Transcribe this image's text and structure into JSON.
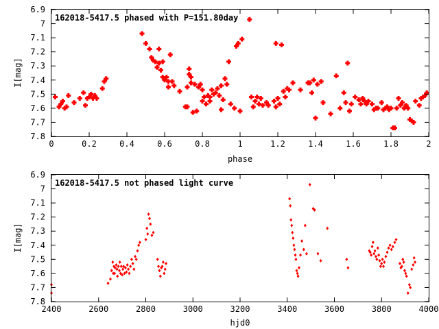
{
  "chart_data": [
    {
      "type": "scatter",
      "title": "162018-5417.5 phased with P=151.80day",
      "xlabel": "phase",
      "ylabel": "I[mag]",
      "xlim": [
        0,
        2
      ],
      "ylim": [
        7.8,
        6.9
      ],
      "y_inverted": true,
      "xticks": [
        "0",
        "0.2",
        "0.4",
        "0.6",
        "0.8",
        "1",
        "1.2",
        "1.4",
        "1.6",
        "1.8",
        "2"
      ],
      "yticks": [
        "6.9",
        "7",
        "7.1",
        "7.2",
        "7.3",
        "7.4",
        "7.5",
        "7.6",
        "7.7",
        "7.8"
      ],
      "marker_color": "#ff0000",
      "grid": false,
      "points": [
        [
          0.02,
          7.52
        ],
        [
          0.04,
          7.59
        ],
        [
          0.05,
          7.57
        ],
        [
          0.06,
          7.55
        ],
        [
          0.07,
          7.6
        ],
        [
          0.08,
          7.59
        ],
        [
          0.09,
          7.51
        ],
        [
          0.12,
          7.56
        ],
        [
          0.15,
          7.53
        ],
        [
          0.17,
          7.49
        ],
        [
          0.18,
          7.58
        ],
        [
          0.19,
          7.53
        ],
        [
          0.2,
          7.52
        ],
        [
          0.21,
          7.5
        ],
        [
          0.22,
          7.53
        ],
        [
          0.23,
          7.51
        ],
        [
          0.24,
          7.53
        ],
        [
          0.27,
          7.46
        ],
        [
          0.28,
          7.41
        ],
        [
          0.29,
          7.39
        ],
        [
          0.48,
          7.07
        ],
        [
          0.5,
          7.14
        ],
        [
          0.52,
          7.18
        ],
        [
          0.53,
          7.24
        ],
        [
          0.54,
          7.26
        ],
        [
          0.55,
          7.27
        ],
        [
          0.56,
          7.31
        ],
        [
          0.57,
          7.28
        ],
        [
          0.57,
          7.18
        ],
        [
          0.58,
          7.33
        ],
        [
          0.59,
          7.27
        ],
        [
          0.59,
          7.38
        ],
        [
          0.6,
          7.4
        ],
        [
          0.61,
          7.38
        ],
        [
          0.62,
          7.41
        ],
        [
          0.62,
          7.45
        ],
        [
          0.63,
          7.22
        ],
        [
          0.64,
          7.41
        ],
        [
          0.65,
          7.44
        ],
        [
          0.68,
          7.48
        ],
        [
          0.71,
          7.59
        ],
        [
          0.72,
          7.45
        ],
        [
          0.72,
          7.59
        ],
        [
          0.73,
          7.32
        ],
        [
          0.73,
          7.36
        ],
        [
          0.74,
          7.38
        ],
        [
          0.74,
          7.42
        ],
        [
          0.75,
          7.63
        ],
        [
          0.76,
          7.43
        ],
        [
          0.77,
          7.62
        ],
        [
          0.78,
          7.45
        ],
        [
          0.79,
          7.43
        ],
        [
          0.8,
          7.55
        ],
        [
          0.8,
          7.47
        ],
        [
          0.81,
          7.52
        ],
        [
          0.82,
          7.57
        ],
        [
          0.83,
          7.51
        ],
        [
          0.84,
          7.52
        ],
        [
          0.84,
          7.55
        ],
        [
          0.85,
          7.47
        ],
        [
          0.86,
          7.5
        ],
        [
          0.87,
          7.49
        ],
        [
          0.88,
          7.46
        ],
        [
          0.89,
          7.51
        ],
        [
          0.9,
          7.44
        ],
        [
          0.9,
          7.61
        ],
        [
          0.91,
          7.54
        ],
        [
          0.92,
          7.39
        ],
        [
          0.93,
          7.43
        ],
        [
          0.94,
          7.27
        ],
        [
          0.95,
          7.57
        ],
        [
          0.97,
          7.6
        ],
        [
          0.98,
          7.16
        ],
        [
          0.99,
          7.14
        ],
        [
          1,
          7.62
        ],
        [
          1.01,
          7.11
        ],
        [
          1.05,
          6.97
        ],
        [
          1.06,
          7.52
        ],
        [
          1.07,
          7.59
        ],
        [
          1.08,
          7.55
        ],
        [
          1.09,
          7.52
        ],
        [
          1.1,
          7.57
        ],
        [
          1.11,
          7.53
        ],
        [
          1.12,
          7.58
        ],
        [
          1.14,
          7.56
        ],
        [
          1.15,
          7.58
        ],
        [
          1.18,
          7.55
        ],
        [
          1.19,
          7.59
        ],
        [
          1.19,
          7.14
        ],
        [
          1.2,
          7.53
        ],
        [
          1.21,
          7.57
        ],
        [
          1.22,
          7.15
        ],
        [
          1.23,
          7.48
        ],
        [
          1.24,
          7.52
        ],
        [
          1.25,
          7.46
        ],
        [
          1.26,
          7.47
        ],
        [
          1.28,
          7.42
        ],
        [
          1.32,
          7.47
        ],
        [
          1.36,
          7.42
        ],
        [
          1.37,
          7.42
        ],
        [
          1.38,
          7.49
        ],
        [
          1.39,
          7.4
        ],
        [
          1.4,
          7.67
        ],
        [
          1.41,
          7.43
        ],
        [
          1.43,
          7.41
        ],
        [
          1.44,
          7.56
        ],
        [
          1.48,
          7.64
        ],
        [
          1.51,
          7.37
        ],
        [
          1.53,
          7.6
        ],
        [
          1.55,
          7.49
        ],
        [
          1.56,
          7.56
        ],
        [
          1.57,
          7.28
        ],
        [
          1.58,
          7.62
        ],
        [
          1.59,
          7.57
        ],
        [
          1.61,
          7.52
        ],
        [
          1.63,
          7.54
        ],
        [
          1.64,
          7.57
        ],
        [
          1.65,
          7.53
        ],
        [
          1.66,
          7.55
        ],
        [
          1.67,
          7.57
        ],
        [
          1.68,
          7.55
        ],
        [
          1.7,
          7.57
        ],
        [
          1.71,
          7.61
        ],
        [
          1.72,
          7.6
        ],
        [
          1.73,
          7.6
        ],
        [
          1.75,
          7.56
        ],
        [
          1.76,
          7.61
        ],
        [
          1.77,
          7.6
        ],
        [
          1.78,
          7.59
        ],
        [
          1.79,
          7.61
        ],
        [
          1.8,
          7.6
        ],
        [
          1.81,
          7.74
        ],
        [
          1.82,
          7.74
        ],
        [
          1.83,
          7.6
        ],
        [
          1.84,
          7.53
        ],
        [
          1.85,
          7.58
        ],
        [
          1.86,
          7.56
        ],
        [
          1.87,
          7.6
        ],
        [
          1.88,
          7.58
        ],
        [
          1.89,
          7.6
        ],
        [
          1.9,
          7.68
        ],
        [
          1.91,
          7.69
        ],
        [
          1.92,
          7.7
        ],
        [
          1.93,
          7.55
        ],
        [
          1.95,
          7.58
        ],
        [
          1.96,
          7.53
        ],
        [
          1.97,
          7.52
        ],
        [
          1.98,
          7.51
        ],
        [
          1.99,
          7.49
        ]
      ]
    },
    {
      "type": "scatter",
      "title": "162018-5417.5 not phased light curve",
      "xlabel": "hjd0",
      "ylabel": "I[mag]",
      "xlim": [
        2400,
        4000
      ],
      "ylim": [
        7.8,
        6.9
      ],
      "y_inverted": true,
      "xticks": [
        "2400",
        "2600",
        "2800",
        "3000",
        "3200",
        "3400",
        "3600",
        "3800",
        "4000"
      ],
      "yticks": [
        "6.9",
        "7",
        "7.1",
        "7.2",
        "7.3",
        "7.4",
        "7.5",
        "7.6",
        "7.7",
        "7.8"
      ],
      "marker_color": "#ff0000",
      "grid": false,
      "points": [
        [
          2400,
          7.68
        ],
        [
          2400,
          7.74
        ],
        [
          2640,
          7.67
        ],
        [
          2650,
          7.64
        ],
        [
          2655,
          7.58
        ],
        [
          2660,
          7.52
        ],
        [
          2662,
          7.6
        ],
        [
          2665,
          7.55
        ],
        [
          2668,
          7.6
        ],
        [
          2670,
          7.56
        ],
        [
          2675,
          7.54
        ],
        [
          2678,
          7.57
        ],
        [
          2680,
          7.62
        ],
        [
          2684,
          7.55
        ],
        [
          2688,
          7.58
        ],
        [
          2690,
          7.52
        ],
        [
          2693,
          7.6
        ],
        [
          2696,
          7.55
        ],
        [
          2700,
          7.61
        ],
        [
          2703,
          7.57
        ],
        [
          2706,
          7.55
        ],
        [
          2710,
          7.6
        ],
        [
          2714,
          7.56
        ],
        [
          2718,
          7.59
        ],
        [
          2722,
          7.54
        ],
        [
          2726,
          7.57
        ],
        [
          2730,
          7.6
        ],
        [
          2735,
          7.55
        ],
        [
          2740,
          7.5
        ],
        [
          2745,
          7.53
        ],
        [
          2750,
          7.57
        ],
        [
          2755,
          7.48
        ],
        [
          2760,
          7.5
        ],
        [
          2765,
          7.44
        ],
        [
          2770,
          7.4
        ],
        [
          2775,
          7.38
        ],
        [
          2800,
          7.36
        ],
        [
          2805,
          7.28
        ],
        [
          2808,
          7.32
        ],
        [
          2812,
          7.18
        ],
        [
          2816,
          7.21
        ],
        [
          2820,
          7.25
        ],
        [
          2826,
          7.33
        ],
        [
          2832,
          7.31
        ],
        [
          2850,
          7.5
        ],
        [
          2854,
          7.55
        ],
        [
          2858,
          7.58
        ],
        [
          2862,
          7.62
        ],
        [
          2866,
          7.56
        ],
        [
          2870,
          7.55
        ],
        [
          2874,
          7.52
        ],
        [
          2878,
          7.6
        ],
        [
          2882,
          7.57
        ],
        [
          2886,
          7.53
        ],
        [
          3410,
          7.07
        ],
        [
          3413,
          7.12
        ],
        [
          3416,
          7.22
        ],
        [
          3419,
          7.26
        ],
        [
          3422,
          7.31
        ],
        [
          3425,
          7.35
        ],
        [
          3428,
          7.4
        ],
        [
          3431,
          7.43
        ],
        [
          3434,
          7.47
        ],
        [
          3437,
          7.5
        ],
        [
          3440,
          7.58
        ],
        [
          3443,
          7.6
        ],
        [
          3446,
          7.62
        ],
        [
          3450,
          7.56
        ],
        [
          3456,
          7.47
        ],
        [
          3462,
          7.37
        ],
        [
          3470,
          7.43
        ],
        [
          3476,
          7.26
        ],
        [
          3482,
          7.46
        ],
        [
          3496,
          6.97
        ],
        [
          3510,
          7.14
        ],
        [
          3516,
          7.15
        ],
        [
          3530,
          7.46
        ],
        [
          3542,
          7.51
        ],
        [
          3570,
          7.28
        ],
        [
          3652,
          7.5
        ],
        [
          3658,
          7.56
        ],
        [
          3748,
          7.44
        ],
        [
          3752,
          7.45
        ],
        [
          3756,
          7.47
        ],
        [
          3760,
          7.41
        ],
        [
          3764,
          7.38
        ],
        [
          3768,
          7.46
        ],
        [
          3772,
          7.44
        ],
        [
          3776,
          7.48
        ],
        [
          3780,
          7.5
        ],
        [
          3784,
          7.42
        ],
        [
          3788,
          7.47
        ],
        [
          3792,
          7.51
        ],
        [
          3796,
          7.55
        ],
        [
          3800,
          7.53
        ],
        [
          3804,
          7.5
        ],
        [
          3808,
          7.55
        ],
        [
          3812,
          7.52
        ],
        [
          3818,
          7.48
        ],
        [
          3824,
          7.45
        ],
        [
          3830,
          7.42
        ],
        [
          3836,
          7.4
        ],
        [
          3842,
          7.43
        ],
        [
          3848,
          7.41
        ],
        [
          3856,
          7.38
        ],
        [
          3862,
          7.36
        ],
        [
          3878,
          7.53
        ],
        [
          3882,
          7.56
        ],
        [
          3886,
          7.55
        ],
        [
          3890,
          7.5
        ],
        [
          3894,
          7.52
        ],
        [
          3898,
          7.58
        ],
        [
          3902,
          7.6
        ],
        [
          3906,
          7.62
        ],
        [
          3912,
          7.74
        ],
        [
          3918,
          7.68
        ],
        [
          3922,
          7.7
        ],
        [
          3928,
          7.57
        ],
        [
          3934,
          7.54
        ],
        [
          3938,
          7.49
        ],
        [
          3942,
          7.52
        ]
      ]
    }
  ]
}
